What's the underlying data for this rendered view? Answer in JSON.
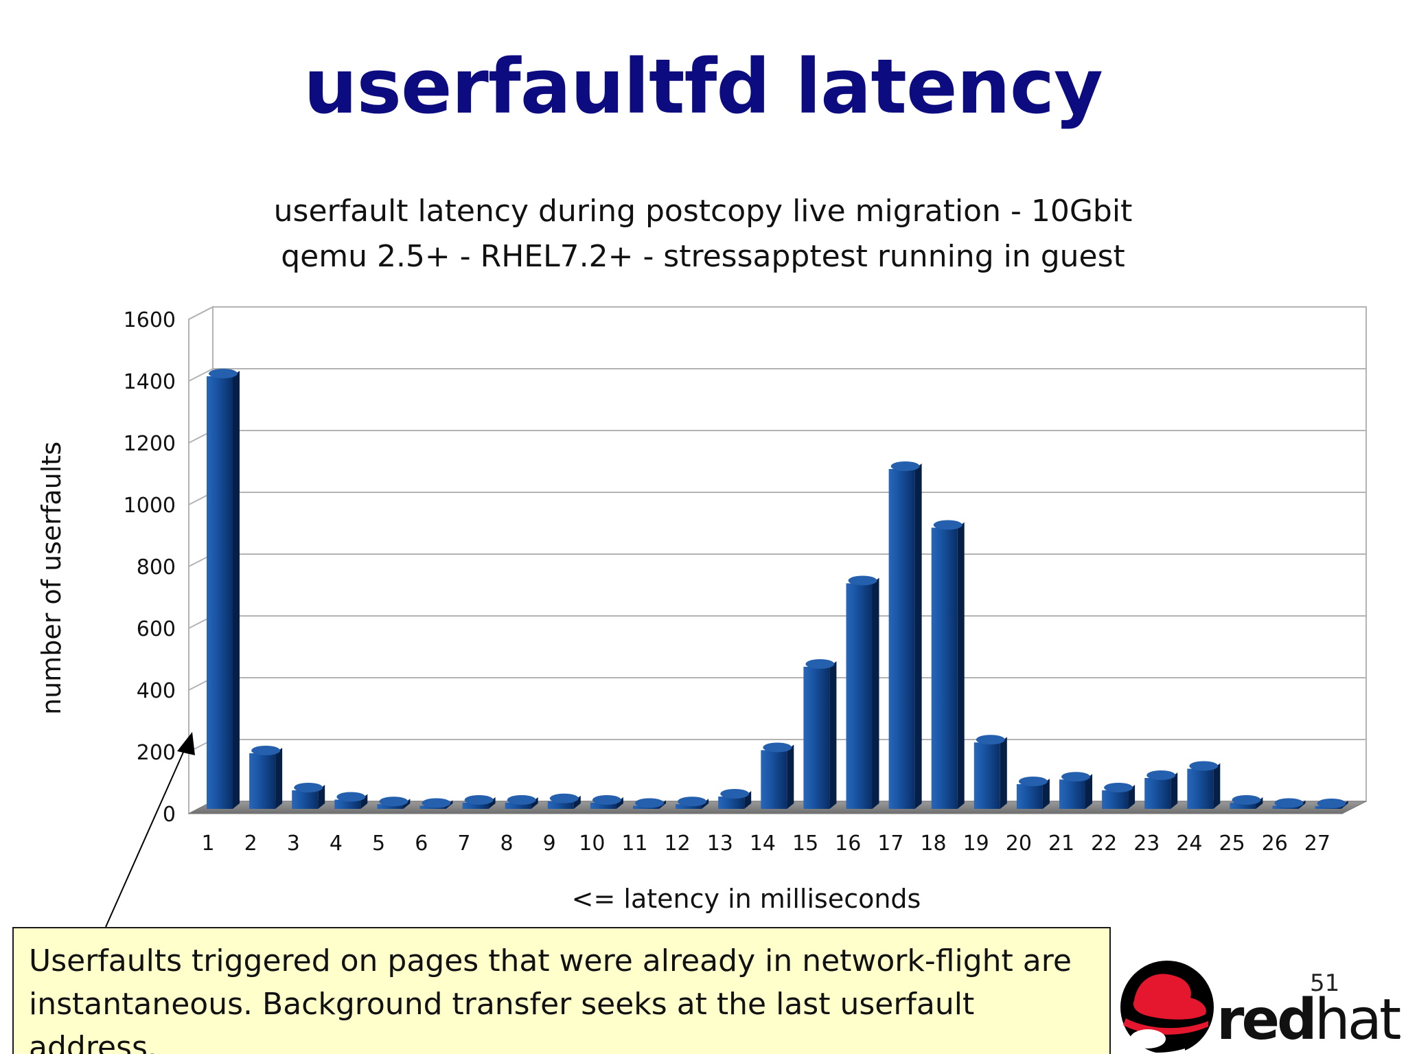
{
  "slide": {
    "title": "userfaultfd latency",
    "page_number": "51",
    "callout_lines": [
      "Userfaults triggered on pages that were already in network-flight are",
      "instantaneous. Background transfer seeks at the last userfault address."
    ],
    "logo_text": "redhat"
  },
  "colors": {
    "title": "#0c0c80",
    "bar": "#0a3f86",
    "callout_bg": "#ffffcc",
    "logo_red": "#e5172e"
  },
  "chart_data": {
    "type": "bar",
    "title_lines": [
      "userfault latency during postcopy live migration - 10Gbit",
      "qemu 2.5+ - RHEL7.2+ - stressapptest running in guest"
    ],
    "xlabel": "<= latency in milliseconds",
    "ylabel": "number of userfaults",
    "ylim": [
      0,
      1600
    ],
    "yticks": [
      0,
      200,
      400,
      600,
      800,
      1000,
      1200,
      1400,
      1600
    ],
    "grid": true,
    "categories": [
      "1",
      "2",
      "3",
      "4",
      "5",
      "6",
      "7",
      "8",
      "9",
      "10",
      "11",
      "12",
      "13",
      "14",
      "15",
      "16",
      "17",
      "18",
      "19",
      "20",
      "21",
      "22",
      "23",
      "24",
      "25",
      "26",
      "27"
    ],
    "values": [
      1400,
      180,
      60,
      30,
      15,
      10,
      20,
      20,
      25,
      20,
      10,
      15,
      40,
      190,
      460,
      730,
      1100,
      910,
      215,
      80,
      95,
      60,
      100,
      130,
      20,
      10,
      2
    ]
  }
}
